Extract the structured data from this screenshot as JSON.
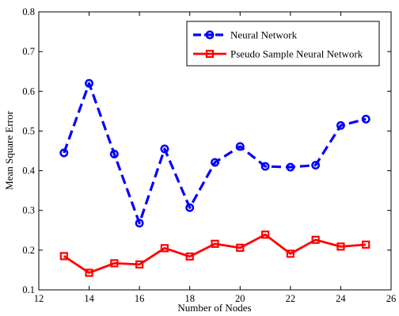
{
  "chart_data": {
    "type": "line",
    "title": "",
    "xlabel": "Number of Nodes",
    "ylabel": "Mean Square Error",
    "xlim": [
      12,
      26
    ],
    "ylim": [
      0.1,
      0.8
    ],
    "xticks": [
      12,
      14,
      16,
      18,
      20,
      22,
      24,
      26
    ],
    "yticks": [
      0.1,
      0.2,
      0.3,
      0.4,
      0.5,
      0.6,
      0.7,
      0.8
    ],
    "xtick_labels": [
      "12",
      "14",
      "16",
      "18",
      "20",
      "22",
      "24",
      "26"
    ],
    "ytick_labels": [
      "0.1",
      "0.2",
      "0.3",
      "0.4",
      "0.5",
      "0.6",
      "0.7",
      "0.8"
    ],
    "grid": false,
    "legend_position": "top-right",
    "x": [
      13,
      14,
      15,
      16,
      17,
      18,
      19,
      20,
      21,
      22,
      23,
      24,
      25
    ],
    "series": [
      {
        "name": "Neural Network",
        "color": "#0000ff",
        "line_style": "dashed",
        "marker": "circle",
        "values": [
          0.445,
          0.62,
          0.442,
          0.268,
          0.455,
          0.307,
          0.421,
          0.461,
          0.411,
          0.409,
          0.414,
          0.514,
          0.53
        ]
      },
      {
        "name": "Pseudo Sample Neural Network",
        "color": "#ff0000",
        "line_style": "solid",
        "marker": "square",
        "values": [
          0.185,
          0.143,
          0.167,
          0.164,
          0.205,
          0.184,
          0.216,
          0.206,
          0.239,
          0.191,
          0.226,
          0.209,
          0.214
        ]
      }
    ]
  }
}
